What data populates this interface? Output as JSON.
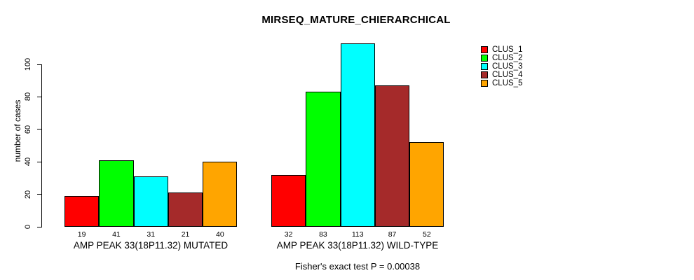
{
  "chart_data": {
    "type": "bar",
    "title": "MIRSEQ_MATURE_CHIERARCHICAL",
    "ylabel": "number of cases",
    "xlabel": "",
    "ylim": [
      0,
      113
    ],
    "yticks": [
      0,
      20,
      40,
      60,
      80,
      100
    ],
    "grid": false,
    "legend_position": "right",
    "bar_value_labels": true,
    "categories": [
      "AMP PEAK 33(18P11.32) MUTATED",
      "AMP PEAK 33(18P11.32) WILD-TYPE"
    ],
    "series": [
      {
        "name": "CLUS_1",
        "color": "#FF0000",
        "values": [
          19,
          32
        ]
      },
      {
        "name": "CLUS_2",
        "color": "#00FF00",
        "values": [
          41,
          83
        ]
      },
      {
        "name": "CLUS_3",
        "color": "#00FFFF",
        "values": [
          31,
          113
        ]
      },
      {
        "name": "CLUS_4",
        "color": "#A52A2A",
        "values": [
          21,
          87
        ]
      },
      {
        "name": "CLUS_5",
        "color": "#FFA500",
        "values": [
          40,
          52
        ]
      }
    ],
    "annotation": "Fisher's exact test P = 0.00038",
    "axis_color": "#000000",
    "text_color": "#000000",
    "background_color": "#FFFFFF"
  }
}
